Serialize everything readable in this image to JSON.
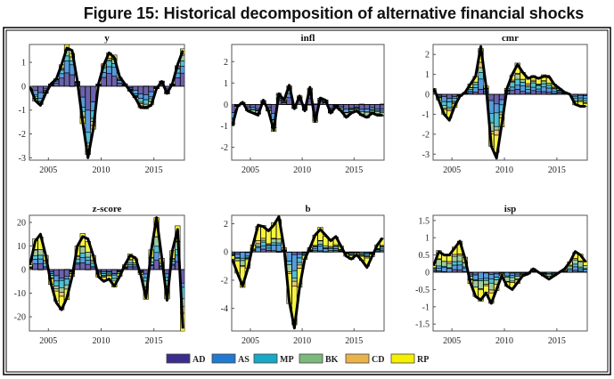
{
  "figure_title": "Figure 15: Historical decomposition of alternative financial shocks",
  "chart_data": {
    "type": "bar",
    "description_of_marks": "stacked bars = shock contributions, black line = total",
    "x": [
      2003.25,
      2003.75,
      2004.25,
      2004.75,
      2005.25,
      2005.75,
      2006.25,
      2006.75,
      2007.25,
      2007.75,
      2008.25,
      2008.75,
      2009.25,
      2009.75,
      2010.25,
      2010.75,
      2011.25,
      2011.75,
      2012.25,
      2012.75,
      2013.25,
      2013.75,
      2014.25,
      2014.75,
      2015.25,
      2015.75,
      2016.25,
      2016.75,
      2017.25,
      2017.75
    ],
    "xlim": [
      2003.2,
      2017.9
    ],
    "xticks": [
      2005,
      2010,
      2015
    ],
    "legend": {
      "placement": "bottom-center",
      "entries": [
        "AD",
        "AS",
        "MP",
        "BK",
        "CD",
        "RP"
      ],
      "colors": [
        "#3a2d8c",
        "#1f7ad0",
        "#17a9c6",
        "#7cb97c",
        "#eab24a",
        "#f4f000"
      ]
    },
    "panels": [
      {
        "title": "y",
        "ylim": [
          -3.1,
          1.75
        ],
        "yticks": [
          -3,
          -2,
          -1,
          0,
          1
        ],
        "total": [
          0,
          -0.6,
          -0.8,
          -0.3,
          0.1,
          0.3,
          0.9,
          1.6,
          1.5,
          0.2,
          -1.5,
          -3.0,
          -1.8,
          0.1,
          0.9,
          1.4,
          1.2,
          0.4,
          0.1,
          -0.2,
          -0.5,
          -0.9,
          -0.9,
          -0.8,
          -0.1,
          0.2,
          -0.3,
          0.1,
          0.9,
          1.5
        ],
        "shares": [
          0.35,
          0.25,
          0.15,
          0.1,
          0.05,
          0.1
        ]
      },
      {
        "title": "infl",
        "ylim": [
          -2.6,
          2.8
        ],
        "yticks": [
          -2,
          -1,
          0,
          1,
          2
        ],
        "total": [
          -1,
          -0.1,
          0.1,
          -0.3,
          -0.4,
          -0.5,
          0.2,
          -0.3,
          -1.2,
          0.5,
          0.2,
          0.9,
          -0.2,
          0.4,
          -0.3,
          0.8,
          -0.8,
          0.3,
          0.2,
          -0.4,
          -0.1,
          -0.3,
          -0.6,
          -0.4,
          -0.3,
          -0.5,
          -0.6,
          -0.4,
          -0.5,
          -0.5
        ],
        "shares": [
          0.4,
          0.2,
          0.05,
          0.25,
          0.02,
          0.08
        ]
      },
      {
        "title": "cmr",
        "ylim": [
          -3.3,
          2.5
        ],
        "yticks": [
          -3,
          -2,
          -1,
          0,
          1,
          2
        ],
        "total": [
          0.3,
          -0.3,
          -1.0,
          -1.3,
          -0.6,
          -0.1,
          0.1,
          0.5,
          0.9,
          2.4,
          0.4,
          -2.6,
          -3.2,
          -1.5,
          0.3,
          1.0,
          1.5,
          1.1,
          0.8,
          0.9,
          0.8,
          0.9,
          0.9,
          0.5,
          0.3,
          0.1,
          0.0,
          -0.5,
          -0.6,
          -0.6
        ],
        "shares": [
          0.15,
          0.2,
          0.2,
          0.1,
          0.05,
          0.3
        ]
      },
      {
        "title": "z-score",
        "ylim": [
          -26,
          23
        ],
        "yticks": [
          -20,
          -10,
          0,
          10,
          20
        ],
        "total": [
          2,
          12,
          15,
          6,
          -6,
          -14,
          -17,
          -12,
          -3,
          10,
          14,
          13,
          6,
          -3,
          -5,
          -4,
          -7,
          -3,
          2,
          6,
          5,
          -2,
          -12,
          8,
          22,
          5,
          -13,
          8,
          17,
          -25
        ],
        "shares": [
          0.2,
          0.1,
          0.15,
          0.15,
          0.05,
          0.35
        ]
      },
      {
        "title": "b",
        "ylim": [
          -5.6,
          2.6
        ],
        "yticks": [
          -4,
          -2,
          0,
          2
        ],
        "total": [
          -0.5,
          -1.5,
          -2.4,
          -1.2,
          0.5,
          1.9,
          1.8,
          1.5,
          1.9,
          2.5,
          0.3,
          -3.5,
          -5.4,
          -2.5,
          -0.5,
          0.3,
          1.2,
          1.6,
          1.2,
          0.8,
          1.1,
          0.4,
          -0.3,
          -0.5,
          -0.2,
          -0.6,
          -1.1,
          -0.3,
          0.5,
          1.0
        ],
        "shares": [
          0.05,
          0.15,
          0.1,
          0.1,
          0.05,
          0.55
        ]
      },
      {
        "title": "isp",
        "ylim": [
          -1.7,
          1.65
        ],
        "yticks": [
          -1.5,
          -1,
          -0.5,
          0,
          0.5,
          1,
          1.5
        ],
        "total": [
          0.2,
          0.6,
          0.5,
          0.5,
          0.7,
          0.9,
          0.4,
          -0.3,
          -0.7,
          -0.8,
          -0.6,
          -0.9,
          -0.5,
          -0.1,
          -0.4,
          -0.5,
          -0.3,
          -0.1,
          -0.05,
          0.1,
          0.0,
          -0.1,
          -0.2,
          -0.1,
          0.0,
          0.1,
          0.3,
          0.6,
          0.5,
          0.3
        ],
        "shares": [
          0.05,
          0.2,
          0.1,
          0.25,
          0.05,
          0.35
        ]
      }
    ]
  }
}
